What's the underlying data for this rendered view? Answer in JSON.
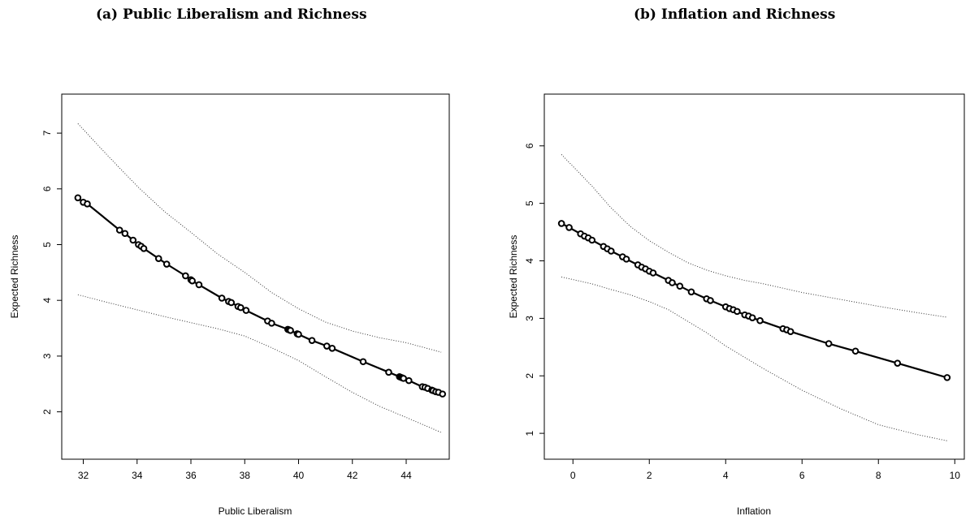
{
  "captions": {
    "a": "(a) Public Liberalism and Richness",
    "b": "(b) Inflation and Richness"
  },
  "chart_data": [
    {
      "type": "line",
      "xlabel": "Public Liberalism",
      "ylabel": "Expected Richness",
      "xlim": [
        31.2,
        45.6
      ],
      "ylim": [
        1.15,
        7.7
      ],
      "xticks": [
        32,
        34,
        36,
        38,
        40,
        42,
        44
      ],
      "yticks": [
        2,
        3,
        4,
        5,
        6,
        7
      ],
      "grid": false,
      "series": [
        {
          "role": "estimate",
          "style": "line-with-points",
          "x": [
            31.8,
            32.0,
            32.15,
            33.35,
            33.55,
            33.85,
            34.05,
            34.15,
            34.25,
            34.8,
            35.1,
            35.8,
            36.0,
            36.05,
            36.3,
            37.15,
            37.4,
            37.5,
            37.75,
            37.85,
            38.05,
            38.85,
            39.0,
            39.6,
            39.65,
            39.7,
            39.95,
            40.0,
            40.5,
            41.05,
            41.25,
            42.4,
            43.35,
            43.75,
            43.8,
            43.85,
            43.9,
            44.1,
            44.6,
            44.7,
            44.8,
            44.95,
            45.0,
            45.1,
            45.2,
            45.35
          ],
          "y": [
            5.84,
            5.76,
            5.73,
            5.26,
            5.2,
            5.08,
            5.0,
            4.97,
            4.93,
            4.75,
            4.65,
            4.44,
            4.37,
            4.35,
            4.28,
            4.04,
            3.98,
            3.96,
            3.89,
            3.87,
            3.82,
            3.63,
            3.59,
            3.48,
            3.47,
            3.46,
            3.4,
            3.39,
            3.28,
            3.18,
            3.14,
            2.9,
            2.71,
            2.63,
            2.62,
            2.61,
            2.6,
            2.56,
            2.45,
            2.44,
            2.42,
            2.39,
            2.38,
            2.36,
            2.35,
            2.32
          ]
        },
        {
          "role": "upper bound",
          "style": "dotted",
          "x": [
            31.8,
            33,
            34,
            35,
            36,
            37,
            38,
            39,
            40,
            41,
            42,
            43,
            44,
            45.3
          ],
          "y": [
            7.17,
            6.55,
            6.05,
            5.6,
            5.22,
            4.83,
            4.5,
            4.14,
            3.85,
            3.61,
            3.45,
            3.33,
            3.24,
            3.07
          ]
        },
        {
          "role": "lower bound",
          "style": "dotted",
          "x": [
            31.8,
            33,
            34,
            35,
            36,
            37,
            38,
            39,
            40,
            41,
            42,
            43,
            44,
            45.3
          ],
          "y": [
            4.1,
            3.95,
            3.83,
            3.71,
            3.6,
            3.49,
            3.36,
            3.15,
            2.92,
            2.63,
            2.35,
            2.1,
            1.9,
            1.63
          ]
        }
      ]
    },
    {
      "type": "line",
      "xlabel": "Inflation",
      "ylabel": "Expected Richness",
      "xlim": [
        -0.75,
        10.25
      ],
      "ylim": [
        0.55,
        6.9
      ],
      "xticks": [
        0,
        2,
        4,
        6,
        8,
        10
      ],
      "yticks": [
        1,
        2,
        3,
        4,
        5,
        6
      ],
      "grid": false,
      "series": [
        {
          "role": "estimate",
          "style": "line-with-points",
          "x": [
            -0.3,
            -0.1,
            0.2,
            0.3,
            0.4,
            0.5,
            0.8,
            0.9,
            1.0,
            1.3,
            1.4,
            1.7,
            1.8,
            1.9,
            2.0,
            2.1,
            2.5,
            2.6,
            2.8,
            3.1,
            3.5,
            3.6,
            4.0,
            4.1,
            4.2,
            4.3,
            4.5,
            4.6,
            4.7,
            4.9,
            5.5,
            5.6,
            5.7,
            6.7,
            7.4,
            8.5,
            9.8
          ],
          "y": [
            4.65,
            4.58,
            4.47,
            4.43,
            4.4,
            4.36,
            4.25,
            4.21,
            4.17,
            4.07,
            4.03,
            3.93,
            3.89,
            3.86,
            3.82,
            3.79,
            3.66,
            3.62,
            3.56,
            3.46,
            3.34,
            3.31,
            3.2,
            3.17,
            3.15,
            3.12,
            3.06,
            3.04,
            3.01,
            2.96,
            2.82,
            2.8,
            2.77,
            2.56,
            2.43,
            2.22,
            1.97
          ]
        },
        {
          "role": "upper bound",
          "style": "dotted",
          "x": [
            -0.3,
            0.5,
            1.0,
            1.5,
            2.0,
            2.5,
            3.0,
            3.5,
            4.0,
            4.5,
            5.0,
            6.0,
            7.0,
            8.0,
            9.0,
            9.8
          ],
          "y": [
            5.85,
            5.3,
            4.92,
            4.6,
            4.35,
            4.15,
            3.97,
            3.84,
            3.74,
            3.66,
            3.6,
            3.45,
            3.33,
            3.21,
            3.1,
            3.02
          ]
        },
        {
          "role": "lower bound",
          "style": "dotted",
          "x": [
            -0.3,
            0.5,
            1.0,
            1.5,
            2.0,
            2.5,
            3.0,
            3.5,
            4.0,
            4.5,
            5.0,
            6.0,
            7.0,
            8.0,
            9.0,
            9.8
          ],
          "y": [
            3.72,
            3.6,
            3.5,
            3.41,
            3.29,
            3.15,
            2.95,
            2.75,
            2.52,
            2.32,
            2.12,
            1.75,
            1.43,
            1.15,
            0.98,
            0.87
          ]
        }
      ]
    }
  ]
}
